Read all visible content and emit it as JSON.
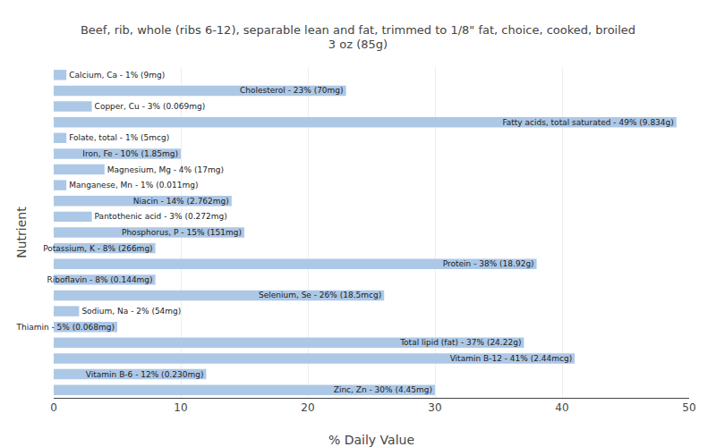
{
  "chart_data": {
    "type": "bar",
    "orientation": "horizontal",
    "title": "Beef, rib, whole (ribs 6-12), separable lean and fat, trimmed to 1/8\" fat, choice, cooked, broiled\n3 oz (85g)",
    "xlabel": "% Daily Value",
    "ylabel": "Nutrient",
    "categories": [
      "Calcium, Ca - 1% (9mg)",
      "Cholesterol - 23% (70mg)",
      "Copper, Cu - 3% (0.069mg)",
      "Fatty acids, total saturated - 49% (9.834g)",
      "Folate, total - 1% (5mcg)",
      "Iron, Fe - 10% (1.85mg)",
      "Magnesium, Mg - 4% (17mg)",
      "Manganese, Mn - 1% (0.011mg)",
      "Niacin - 14% (2.762mg)",
      "Pantothenic acid - 3% (0.272mg)",
      "Phosphorus, P - 15% (151mg)",
      "Potassium, K - 8% (266mg)",
      "Protein - 38% (18.92g)",
      "Riboflavin - 8% (0.144mg)",
      "Selenium, Se - 26% (18.5mcg)",
      "Sodium, Na - 2% (54mg)",
      "Thiamin - 5% (0.068mg)",
      "Total lipid (fat) - 37% (24.22g)",
      "Vitamin B-12 - 41% (2.44mcg)",
      "Vitamin B-6 - 12% (0.230mg)",
      "Zinc, Zn - 30% (4.45mg)"
    ],
    "values": [
      1,
      23,
      3,
      49,
      1,
      10,
      4,
      1,
      14,
      3,
      15,
      8,
      38,
      8,
      26,
      2,
      5,
      37,
      41,
      12,
      30
    ],
    "color": "#adc8e6",
    "xlim": [
      0,
      50
    ],
    "xticks": [
      0,
      10,
      20,
      30,
      40,
      50
    ],
    "grid": true,
    "tick_labels": "x"
  }
}
